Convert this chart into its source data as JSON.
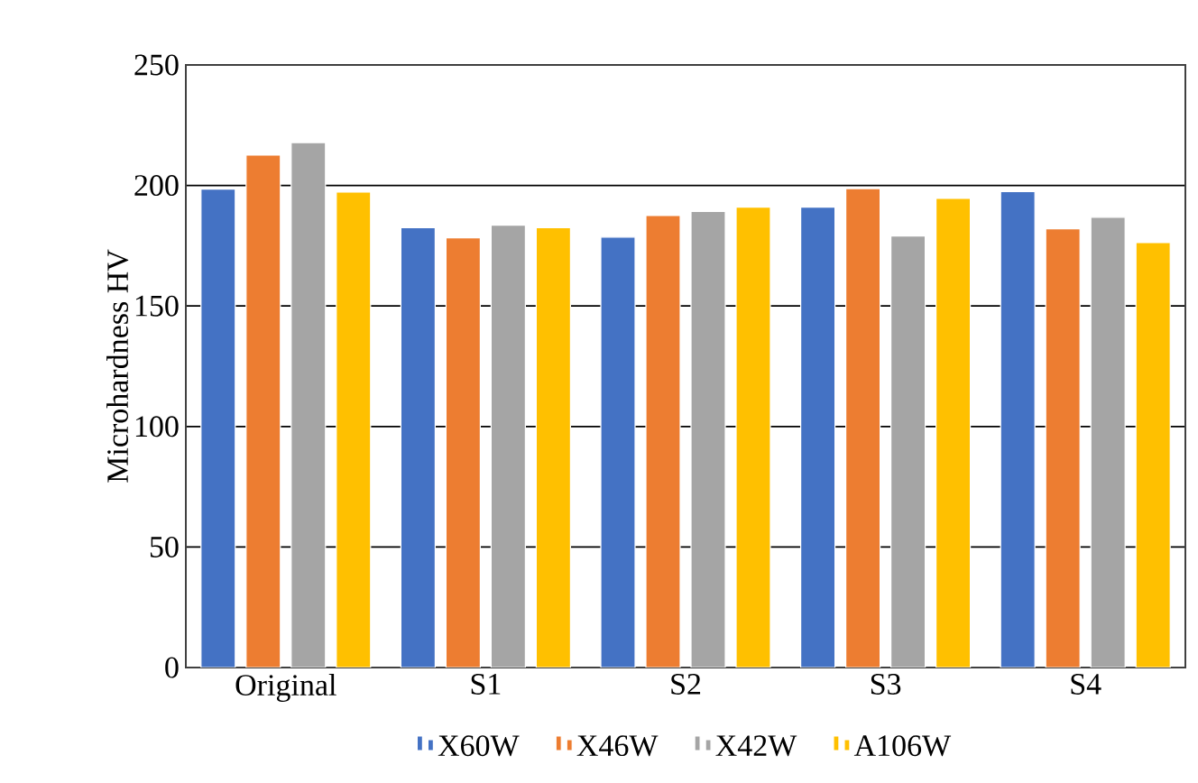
{
  "chart_data": {
    "type": "bar",
    "ylabel": "Microhardness HV",
    "categories": [
      "Original",
      "S1",
      "S2",
      "S3",
      "S4"
    ],
    "series": [
      {
        "name": "X60W",
        "color": "#4472c4",
        "values": [
          198.5,
          182.5,
          178.6,
          191,
          197.5
        ]
      },
      {
        "name": "X46W",
        "color": "#ed7d31",
        "values": [
          212.6,
          178.3,
          187.5,
          198.7,
          182
        ]
      },
      {
        "name": "X42W",
        "color": "#a5a5a5",
        "values": [
          217.8,
          183.5,
          189.2,
          179,
          186.8
        ]
      },
      {
        "name": "A106W",
        "color": "#ffc000",
        "values": [
          197.3,
          182.5,
          191,
          194.6,
          176.3
        ]
      }
    ],
    "ylim": [
      0,
      250
    ],
    "yticks": [
      0,
      50,
      100,
      150,
      200,
      250
    ],
    "grid": "y",
    "legend": "bottom"
  }
}
